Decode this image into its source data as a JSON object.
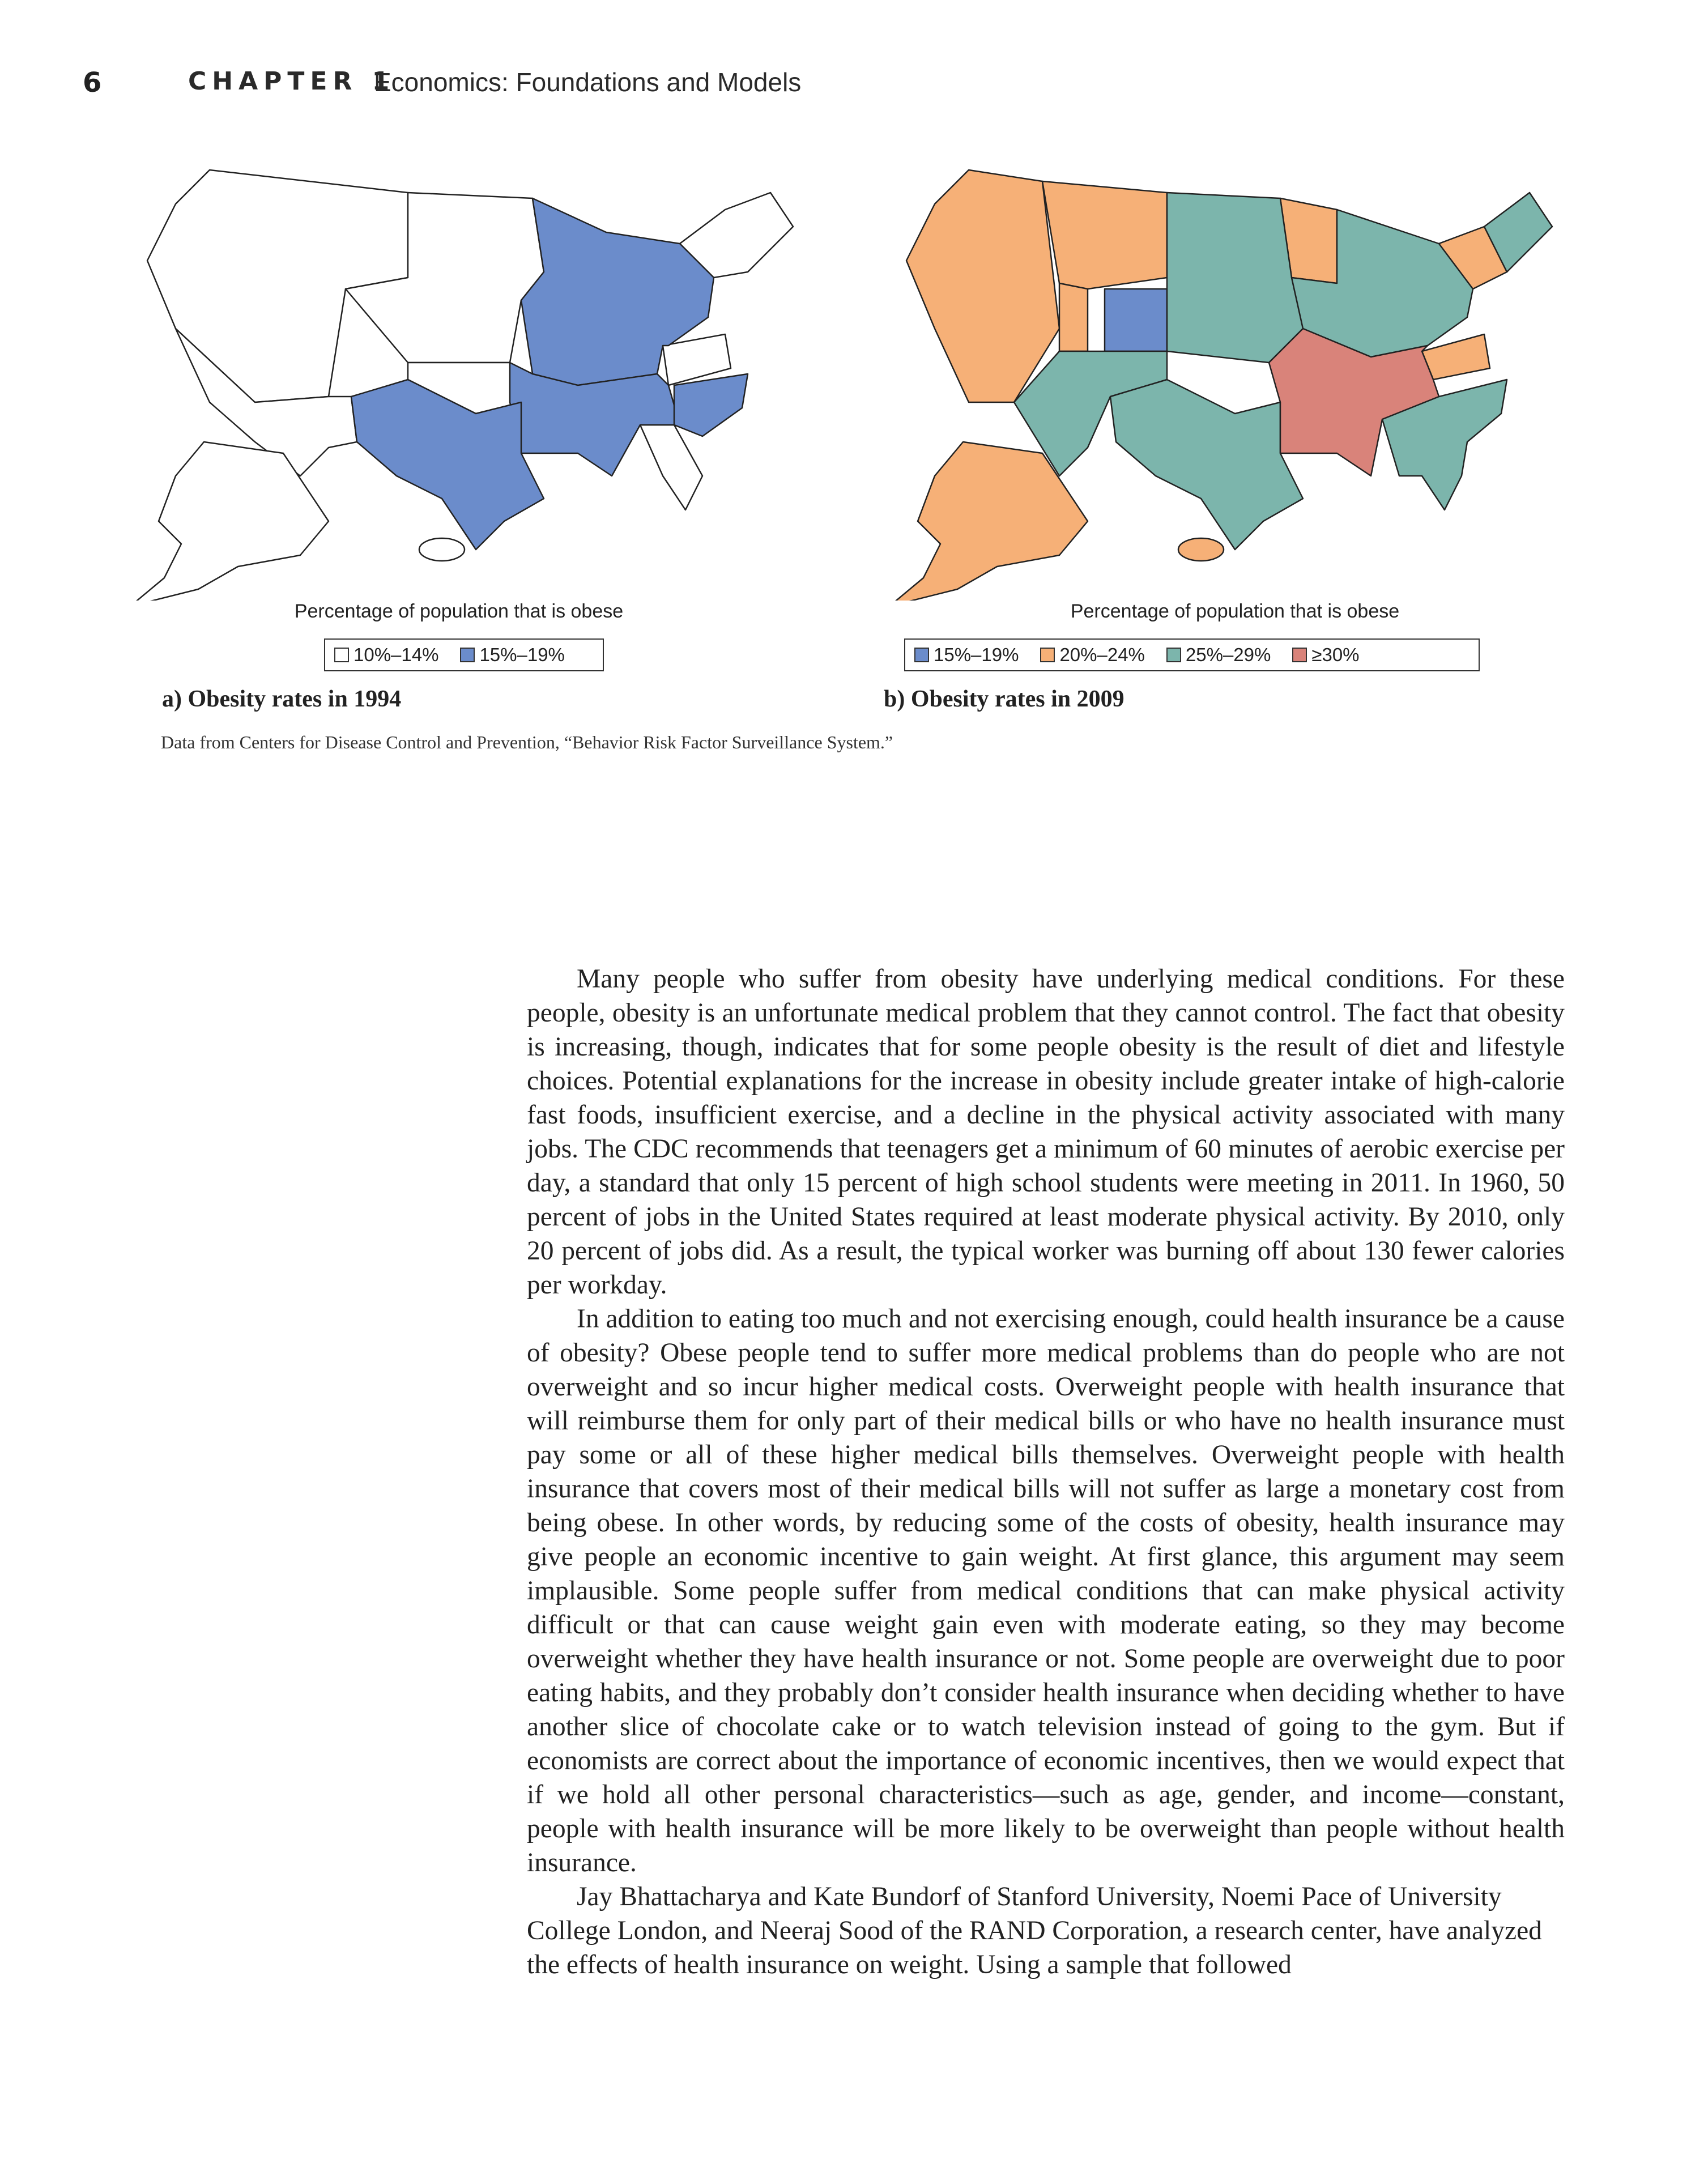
{
  "header": {
    "page_number": "6",
    "chapter_label": "CHAPTER 1",
    "chapter_title": "Economics: Foundations and Models"
  },
  "figure": {
    "panel_a": {
      "caption": "Percentage of population that is obese",
      "label": "a) Obesity rates in 1994",
      "legend": [
        {
          "label": "10%–14%",
          "color": "#ffffff"
        },
        {
          "label": "15%–19%",
          "color": "#6b8ccb"
        }
      ]
    },
    "panel_b": {
      "caption": "Percentage of population that is obese",
      "label": "b) Obesity rates in 2009",
      "legend": [
        {
          "label": "15%–19%",
          "color": "#6b8ccb"
        },
        {
          "label": "20%–24%",
          "color": "#f6b077"
        },
        {
          "label": "25%–29%",
          "color": "#7cb5ac"
        },
        {
          "label": "≥30%",
          "color": "#d9837a"
        }
      ]
    },
    "source": "Data from Centers for Disease Control and Prevention, “Behavior Risk Factor Surveillance System.”"
  },
  "body": {
    "paragraphs": [
      "Many people who suffer from obesity have underlying medical conditions. For these people, obesity is an unfortunate medical problem that they cannot control. The fact that obesity is increasing, though, indicates that for some people obesity is the result of diet and lifestyle choices. Potential explanations for the increase in obesity include greater intake of high-calorie fast foods, insufficient exercise, and a decline in the physical activity associated with many jobs. The CDC recommends that teenagers get a minimum of 60 minutes of aerobic exercise per day, a standard that only 15 percent of high school students were meeting in 2011. In 1960, 50 percent of jobs in the United States required at least moderate physical activity. By 2010, only 20 percent of jobs did. As a result, the typical worker was burning off about 130 fewer calories per workday.",
      "In addition to eating too much and not exercising enough, could health insurance be a cause of obesity? Obese people tend to suffer more medical problems than do people who are not overweight and so incur higher medical costs. Overweight people with health insurance that will reimburse them for only part of their medical bills or who have no health insurance must pay some or all of these higher medical bills themselves. Overweight people with health insurance that covers most of their medical bills will not suffer as large a monetary cost from being obese. In other words, by reducing some of the costs of obesity, health insurance may give people an economic incentive to gain weight. At first glance, this argument may seem implausible. Some people suffer from medical conditions that can make physical activity difficult or that can cause weight gain even with moderate eating, so they may become overweight whether they have health insurance or not. Some people are overweight due to poor eating habits, and they probably don’t consider health insurance when deciding whether to have another slice of chocolate cake or to watch television instead of going to the gym. But if economists are correct about the importance of economic incentives, then we would expect that if we hold all other personal characteristics—such as age, gender, and income—constant, people with health insurance will be more likely to be overweight than people without health insurance.",
      "Jay Bhattacharya and Kate Bundorf of Stanford University, Noemi Pace of University College London, and Neeraj Sood of the RAND Corporation, a research center, have analyzed the effects of health insurance on weight. Using a sample that followed"
    ]
  }
}
